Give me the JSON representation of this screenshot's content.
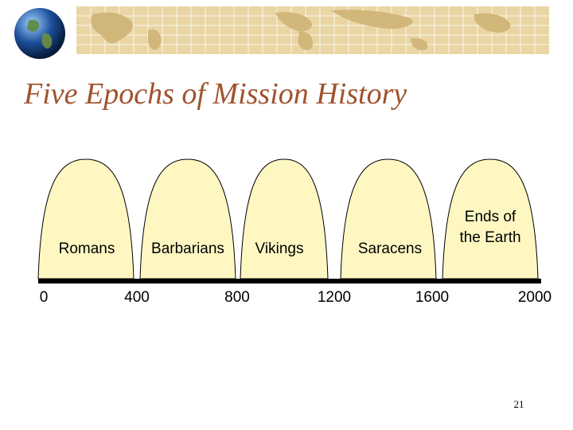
{
  "slide": {
    "title": "Five Epochs of Mission History",
    "page_number": "21"
  },
  "colors": {
    "title": "#a0522d",
    "arch_fill": "#fff7c2",
    "arch_stroke": "#000000",
    "map": "#e9d6a4"
  },
  "icons": [
    "globe-icon",
    "world-map-banner"
  ],
  "epochs": [
    {
      "label_lines": [
        "Romans"
      ]
    },
    {
      "label_lines": [
        "Barbarians"
      ]
    },
    {
      "label_lines": [
        "Vikings"
      ]
    },
    {
      "label_lines": [
        "Saracens"
      ]
    },
    {
      "label_lines": [
        "Ends of",
        "the Earth"
      ]
    }
  ],
  "timeline": {
    "ticks": [
      "0",
      "400",
      "800",
      "1200",
      "1600",
      "2000"
    ]
  }
}
